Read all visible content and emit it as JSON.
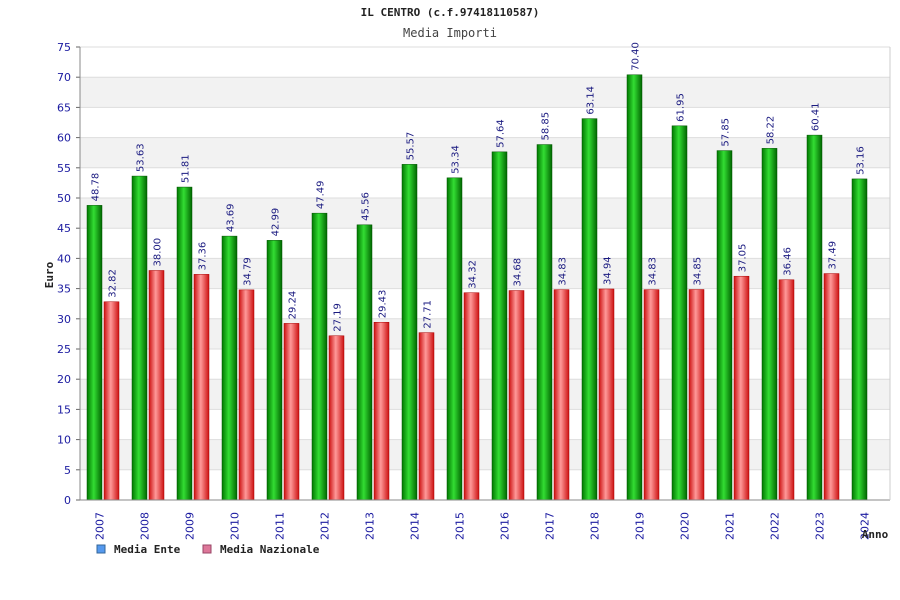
{
  "chart_data": {
    "type": "bar",
    "title": "IL CENTRO (c.f.97418110587)",
    "subtitle": "Media Importi",
    "xlabel": "Anno",
    "ylabel": "Euro",
    "ylim": [
      0,
      75
    ],
    "ytick_step": 5,
    "categories": [
      "2007",
      "2008",
      "2009",
      "2010",
      "2011",
      "2012",
      "2013",
      "2014",
      "2015",
      "2016",
      "2017",
      "2018",
      "2019",
      "2020",
      "2021",
      "2022",
      "2023",
      "2024"
    ],
    "series": [
      {
        "name": "Media Ente",
        "color": "#009900",
        "values": [
          48.78,
          53.63,
          51.81,
          43.69,
          42.99,
          47.49,
          45.56,
          55.57,
          53.34,
          57.64,
          58.85,
          63.14,
          70.4,
          61.95,
          57.85,
          58.22,
          60.41,
          53.16
        ],
        "labels": [
          "48.78",
          "53.63",
          "51.81",
          "43.69",
          "42.99",
          "47.49",
          "45.56",
          "55.57",
          "53.34",
          "57.64",
          "58.85",
          "63.14",
          "70.40",
          "61.95",
          "57.85",
          "58.22",
          "60.41",
          "53.16"
        ]
      },
      {
        "name": "Media Nazionale",
        "color": "#dd2222",
        "values": [
          32.82,
          38.0,
          37.36,
          34.79,
          29.24,
          27.19,
          29.43,
          27.71,
          34.32,
          34.68,
          34.83,
          34.94,
          34.83,
          34.85,
          37.05,
          36.46,
          37.49,
          null
        ],
        "labels": [
          "32.82",
          "38.00",
          "37.36",
          "34.79",
          "29.24",
          "27.19",
          "29.43",
          "27.71",
          "34.32",
          "34.68",
          "34.83",
          "34.94",
          "34.83",
          "34.85",
          "37.05",
          "36.46",
          "37.49",
          null
        ]
      }
    ],
    "legend": [
      {
        "name": "Media Ente",
        "color": "#5599ee"
      },
      {
        "name": "Media Nazionale",
        "color": "#dd7799"
      }
    ],
    "legend_position": "bottom-left",
    "grid": true
  }
}
